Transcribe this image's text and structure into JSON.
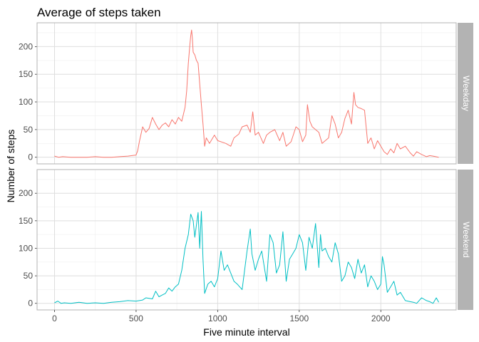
{
  "chart_data": {
    "type": "line",
    "title": "Average of steps taken",
    "xlabel": "Five minute interval",
    "ylabel": "Number of steps",
    "xlim": [
      -107,
      2462
    ],
    "ylim": [
      -12,
      243
    ],
    "x_ticks": [
      0,
      500,
      1000,
      1500,
      2000
    ],
    "y_ticks": [
      0,
      50,
      100,
      150,
      200
    ],
    "grid": true,
    "legend": "none",
    "facets": [
      {
        "label": "Weekday",
        "color": "#F8766D",
        "series": {
          "x": [
            0,
            25,
            50,
            100,
            150,
            200,
            250,
            300,
            350,
            400,
            450,
            500,
            510,
            520,
            540,
            560,
            580,
            600,
            620,
            640,
            660,
            680,
            700,
            720,
            740,
            760,
            780,
            800,
            810,
            820,
            830,
            835,
            840,
            845,
            850,
            860,
            870,
            880,
            900,
            910,
            920,
            930,
            950,
            980,
            1000,
            1050,
            1080,
            1100,
            1130,
            1150,
            1180,
            1200,
            1215,
            1230,
            1250,
            1280,
            1300,
            1320,
            1350,
            1380,
            1400,
            1420,
            1450,
            1480,
            1500,
            1520,
            1540,
            1550,
            1565,
            1580,
            1600,
            1620,
            1640,
            1660,
            1680,
            1700,
            1720,
            1740,
            1760,
            1780,
            1800,
            1820,
            1835,
            1845,
            1860,
            1880,
            1900,
            1920,
            1940,
            1960,
            1980,
            2000,
            2020,
            2040,
            2060,
            2080,
            2100,
            2120,
            2150,
            2180,
            2200,
            2220,
            2250,
            2280,
            2300,
            2320,
            2355
          ],
          "y": [
            2,
            0,
            1,
            0,
            0,
            0,
            1,
            0,
            0,
            1,
            2,
            4,
            12,
            28,
            55,
            45,
            52,
            72,
            60,
            50,
            58,
            62,
            55,
            68,
            60,
            72,
            65,
            90,
            120,
            170,
            205,
            220,
            230,
            215,
            190,
            185,
            175,
            170,
            95,
            60,
            20,
            35,
            25,
            40,
            30,
            25,
            20,
            35,
            42,
            55,
            58,
            45,
            82,
            40,
            45,
            25,
            40,
            45,
            50,
            30,
            45,
            20,
            28,
            55,
            50,
            28,
            40,
            95,
            65,
            55,
            50,
            45,
            25,
            30,
            35,
            75,
            60,
            35,
            45,
            70,
            85,
            60,
            117,
            95,
            90,
            88,
            85,
            25,
            35,
            15,
            30,
            20,
            10,
            5,
            15,
            8,
            25,
            15,
            20,
            8,
            2,
            10,
            5,
            1,
            3,
            2,
            0
          ]
        },
        "y_labels": [
          "0",
          "50",
          "100",
          "150",
          "200"
        ]
      },
      {
        "label": "Weekend",
        "color": "#00BFC4",
        "series": {
          "x": [
            0,
            20,
            40,
            60,
            100,
            150,
            200,
            250,
            300,
            350,
            400,
            450,
            500,
            540,
            560,
            600,
            620,
            640,
            660,
            680,
            700,
            720,
            740,
            760,
            780,
            800,
            820,
            835,
            850,
            860,
            880,
            890,
            900,
            910,
            920,
            940,
            960,
            980,
            1000,
            1020,
            1040,
            1060,
            1080,
            1100,
            1120,
            1150,
            1180,
            1200,
            1210,
            1230,
            1250,
            1270,
            1300,
            1320,
            1340,
            1360,
            1380,
            1400,
            1420,
            1440,
            1460,
            1480,
            1500,
            1520,
            1540,
            1560,
            1580,
            1600,
            1620,
            1630,
            1640,
            1660,
            1680,
            1700,
            1720,
            1740,
            1760,
            1780,
            1800,
            1820,
            1840,
            1860,
            1880,
            1900,
            1920,
            1940,
            1960,
            1980,
            2000,
            2010,
            2020,
            2040,
            2060,
            2080,
            2100,
            2120,
            2150,
            2180,
            2200,
            2220,
            2250,
            2280,
            2300,
            2320,
            2340,
            2355
          ],
          "y": [
            1,
            4,
            0,
            1,
            0,
            2,
            0,
            1,
            0,
            2,
            3,
            5,
            4,
            6,
            10,
            8,
            22,
            12,
            15,
            18,
            28,
            22,
            30,
            35,
            60,
            100,
            125,
            162,
            150,
            120,
            165,
            100,
            167,
            80,
            18,
            35,
            40,
            30,
            45,
            95,
            60,
            70,
            55,
            40,
            35,
            25,
            95,
            135,
            90,
            60,
            80,
            95,
            40,
            125,
            110,
            55,
            70,
            130,
            40,
            80,
            90,
            100,
            125,
            110,
            60,
            120,
            100,
            145,
            65,
            125,
            95,
            100,
            85,
            75,
            110,
            90,
            40,
            50,
            75,
            65,
            45,
            80,
            55,
            70,
            30,
            50,
            40,
            25,
            35,
            85,
            70,
            20,
            30,
            40,
            15,
            20,
            5,
            3,
            2,
            0,
            10,
            5,
            3,
            0,
            10,
            2
          ]
        },
        "y_labels": [
          "0",
          "50",
          "100",
          "150",
          "200"
        ]
      }
    ],
    "x_labels": [
      "0",
      "500",
      "1000",
      "1500",
      "2000"
    ]
  },
  "style": {
    "panel_background": "#ffffff",
    "panel_border": "#b3b3b3",
    "grid_major": "#dedede",
    "grid_minor": "#efefef",
    "strip_background": "#b3b3b3",
    "strip_text": "#ffffff",
    "tick_text": "#4d4d4d"
  }
}
